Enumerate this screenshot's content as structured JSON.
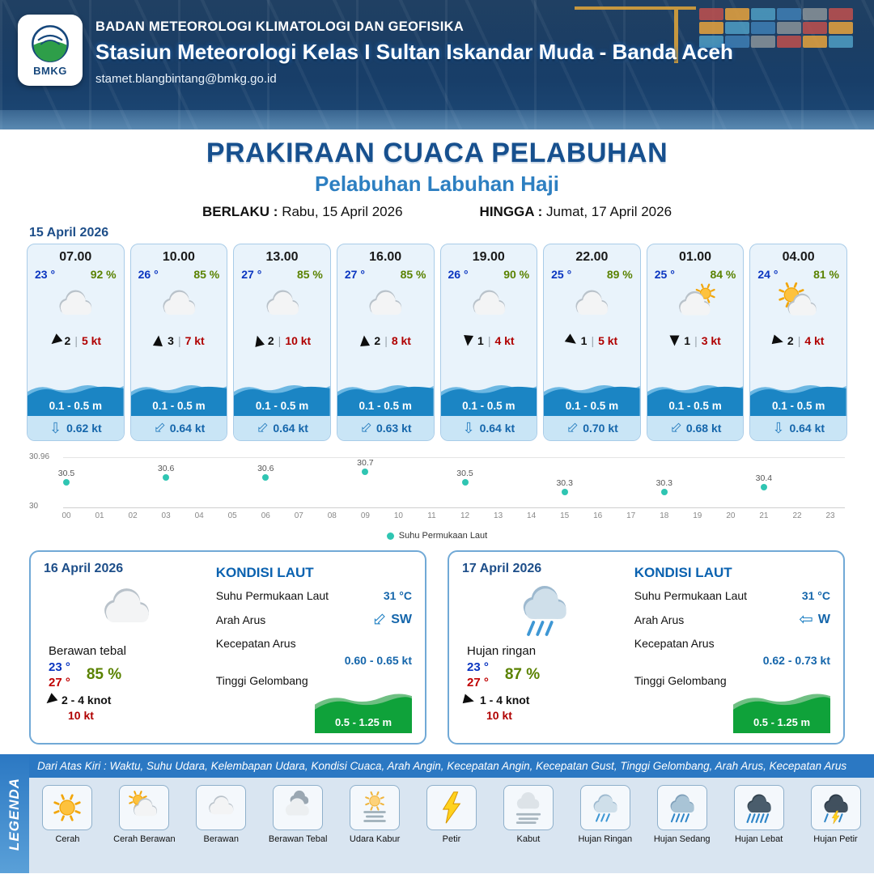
{
  "header": {
    "logo_text": "BMKG",
    "agency": "BADAN METEOROLOGI KLIMATOLOGI DAN GEOFISIKA",
    "station": "Stasiun Meteorologi Kelas I Sultan Iskandar Muda - Banda Aceh",
    "email": "stamet.blangbintang@bmkg.go.id"
  },
  "title": {
    "main": "PRAKIRAAN CUACA PELABUHAN",
    "subtitle": "Pelabuhan Labuhan Haji",
    "berlaku_label": "BERLAKU :",
    "berlaku_value": "Rabu, 15 April 2026",
    "hingga_label": "HINGGA :",
    "hingga_value": "Jumat, 17 April 2026"
  },
  "forecast_date": "15 April 2026",
  "forecast_cards": [
    {
      "time": "07.00",
      "temp": "23 °",
      "humidity": "92 %",
      "icon": "cloud",
      "wind_dir_deg": 140,
      "wind_val": "2",
      "wind_speed": "5 kt",
      "wave_height": "0.1 - 0.5 m",
      "current_dir_deg": 0,
      "current_speed": "0.62 kt"
    },
    {
      "time": "10.00",
      "temp": "26 °",
      "humidity": "85 %",
      "icon": "cloud",
      "wind_dir_deg": 275,
      "wind_val": "3",
      "wind_speed": "7 kt",
      "wave_height": "0.1 - 0.5 m",
      "current_dir_deg": 45,
      "current_speed": "0.64 kt"
    },
    {
      "time": "13.00",
      "temp": "27 °",
      "humidity": "85 %",
      "icon": "cloud",
      "wind_dir_deg": 255,
      "wind_val": "2",
      "wind_speed": "10 kt",
      "wave_height": "0.1 - 0.5 m",
      "current_dir_deg": 45,
      "current_speed": "0.64 kt"
    },
    {
      "time": "16.00",
      "temp": "27 °",
      "humidity": "85 %",
      "icon": "cloud",
      "wind_dir_deg": 265,
      "wind_val": "2",
      "wind_speed": "8 kt",
      "wave_height": "0.1 - 0.5 m",
      "current_dir_deg": 45,
      "current_speed": "0.63 kt"
    },
    {
      "time": "19.00",
      "temp": "26 °",
      "humidity": "90 %",
      "icon": "cloud",
      "wind_dir_deg": 95,
      "wind_val": "1",
      "wind_speed": "4 kt",
      "wave_height": "0.1 - 0.5 m",
      "current_dir_deg": 0,
      "current_speed": "0.64 kt"
    },
    {
      "time": "22.00",
      "temp": "25 °",
      "humidity": "89 %",
      "icon": "cloud",
      "wind_dir_deg": 35,
      "wind_val": "1",
      "wind_speed": "5 kt",
      "wave_height": "0.1 - 0.5 m",
      "current_dir_deg": 45,
      "current_speed": "0.70 kt"
    },
    {
      "time": "01.00",
      "temp": "25 °",
      "humidity": "84 %",
      "icon": "cloud-sun-small",
      "wind_dir_deg": 90,
      "wind_val": "1",
      "wind_speed": "3 kt",
      "wave_height": "0.1 - 0.5 m",
      "current_dir_deg": 45,
      "current_speed": "0.68 kt"
    },
    {
      "time": "04.00",
      "temp": "24 °",
      "humidity": "81 %",
      "icon": "cloud-sun-big",
      "wind_dir_deg": 15,
      "wind_val": "2",
      "wind_speed": "4 kt",
      "wave_height": "0.1 - 0.5 m",
      "current_dir_deg": 0,
      "current_speed": "0.64 kt"
    }
  ],
  "chart_data": {
    "type": "scatter",
    "legend": "Suhu Permukaan Laut",
    "ylim": [
      30,
      30.96
    ],
    "y_axis_labels": [
      "30.96",
      "30"
    ],
    "x_ticks": [
      "00",
      "01",
      "02",
      "03",
      "04",
      "05",
      "06",
      "07",
      "08",
      "09",
      "10",
      "11",
      "12",
      "13",
      "14",
      "15",
      "16",
      "17",
      "18",
      "19",
      "20",
      "21",
      "22",
      "23"
    ],
    "points": [
      {
        "hour": 0,
        "value": 30.5
      },
      {
        "hour": 3,
        "value": 30.6
      },
      {
        "hour": 6,
        "value": 30.6
      },
      {
        "hour": 9,
        "value": 30.7
      },
      {
        "hour": 12,
        "value": 30.5
      },
      {
        "hour": 15,
        "value": 30.3
      },
      {
        "hour": 18,
        "value": 30.3
      },
      {
        "hour": 21,
        "value": 30.4
      }
    ],
    "dot_color": "#2fc5b2"
  },
  "day_cards": [
    {
      "date": "16 April 2026",
      "icon": "cloud",
      "condition": "Berawan tebal",
      "temp_min": "23 °",
      "temp_max": "27 °",
      "humidity": "85 %",
      "wind_dir_deg": 140,
      "wind_range": "2 - 4 knot",
      "gust": "10 kt",
      "sea": {
        "heading": "KONDISI LAUT",
        "sst_label": "Suhu Permukaan Laut",
        "sst_value": "31 °C",
        "current_dir_label": "Arah Arus",
        "current_dir_value": "SW",
        "current_dir_deg": -45,
        "current_speed_label": "Kecepatan Arus",
        "current_speed_value": "0.60 - 0.65 kt",
        "wave_label": "Tinggi Gelombang",
        "wave_value": "0.5 - 1.25 m"
      }
    },
    {
      "date": "17 April 2026",
      "icon": "rain-light",
      "condition": "Hujan ringan",
      "temp_min": "23 °",
      "temp_max": "27 °",
      "humidity": "87 %",
      "wind_dir_deg": 15,
      "wind_range": "1 - 4 knot",
      "gust": "10 kt",
      "sea": {
        "heading": "KONDISI LAUT",
        "sst_label": "Suhu Permukaan Laut",
        "sst_value": "31 °C",
        "current_dir_label": "Arah Arus",
        "current_dir_value": "W",
        "current_dir_deg": 0,
        "current_speed_label": "Kecepatan Arus",
        "current_speed_value": "0.62 - 0.73 kt",
        "wave_label": "Tinggi Gelombang",
        "wave_value": "0.5 - 1.25 m"
      }
    }
  ],
  "legend": {
    "side_label": "LEGENDA",
    "caption": "Dari Atas Kiri : Waktu, Suhu Udara, Kelembapan Udara, Kondisi Cuaca, Arah Angin, Kecepatan Angin, Kecepatan Gust, Tinggi Gelombang, Arah Arus, Kecepatan Arus",
    "items": [
      {
        "label": "Cerah",
        "icon": "sun"
      },
      {
        "label": "Cerah Berawan",
        "icon": "sun-cloud"
      },
      {
        "label": "Berawan",
        "icon": "cloud"
      },
      {
        "label": "Berawan Tebal",
        "icon": "clouds"
      },
      {
        "label": "Udara Kabur",
        "icon": "haze"
      },
      {
        "label": "Petir",
        "icon": "bolt"
      },
      {
        "label": "Kabut",
        "icon": "fog"
      },
      {
        "label": "Hujan Ringan",
        "icon": "rain-light"
      },
      {
        "label": "Hujan Sedang",
        "icon": "rain-medium"
      },
      {
        "label": "Hujan Lebat",
        "icon": "rain-heavy"
      },
      {
        "label": "Hujan Petir",
        "icon": "rain-thunder"
      }
    ]
  },
  "colors": {
    "accent_blue": "#1b85c4",
    "dark_blue": "#1d4e89",
    "temp_blue": "#0a35c0",
    "humidity_green": "#5a8200",
    "wind_red": "#b00000",
    "wave_green": "#0fa23a",
    "sst_dot": "#2fc5b2"
  }
}
